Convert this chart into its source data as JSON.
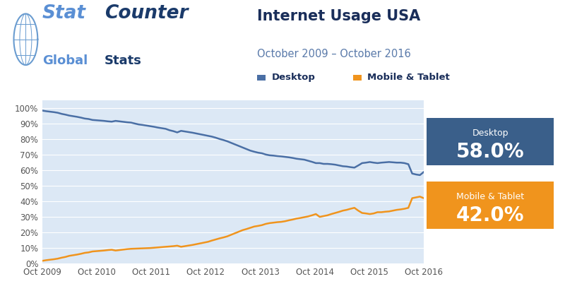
{
  "title": "Internet Usage USA",
  "subtitle": "October 2009 – October 2016",
  "legend_desktop": "Desktop",
  "legend_mobile": "Mobile & Tablet",
  "desktop_color": "#4a6fa5",
  "mobile_color": "#f0941d",
  "desktop_box_color": "#3a5f8a",
  "mobile_box_color": "#f0941d",
  "title_color": "#1a2e5a",
  "subtitle_color": "#5a7aaa",
  "background_color": "#ffffff",
  "plot_bg_color": "#dce8f5",
  "grid_color": "#ffffff",
  "ylim": [
    0,
    1.05
  ],
  "yticks": [
    0,
    0.1,
    0.2,
    0.3,
    0.4,
    0.5,
    0.6,
    0.7,
    0.8,
    0.9,
    1.0
  ],
  "ytick_labels": [
    "0%",
    "10%",
    "20%",
    "30%",
    "40%",
    "50%",
    "60%",
    "70%",
    "80%",
    "90%",
    "100%"
  ],
  "xtick_labels": [
    "Oct 2009",
    "Oct 2010",
    "Oct 2011",
    "Oct 2012",
    "Oct 2013",
    "Oct 2014",
    "Oct 2015",
    "Oct 2016"
  ],
  "desktop_data": [
    0.982,
    0.978,
    0.975,
    0.972,
    0.968,
    0.961,
    0.956,
    0.95,
    0.946,
    0.942,
    0.937,
    0.931,
    0.928,
    0.922,
    0.92,
    0.918,
    0.916,
    0.913,
    0.911,
    0.916,
    0.913,
    0.91,
    0.907,
    0.905,
    0.899,
    0.893,
    0.89,
    0.886,
    0.882,
    0.878,
    0.873,
    0.869,
    0.865,
    0.856,
    0.85,
    0.842,
    0.852,
    0.848,
    0.844,
    0.84,
    0.835,
    0.83,
    0.825,
    0.82,
    0.815,
    0.808,
    0.8,
    0.793,
    0.785,
    0.775,
    0.765,
    0.755,
    0.745,
    0.735,
    0.725,
    0.718,
    0.712,
    0.708,
    0.7,
    0.695,
    0.693,
    0.69,
    0.688,
    0.685,
    0.682,
    0.678,
    0.673,
    0.67,
    0.667,
    0.66,
    0.653,
    0.645,
    0.645,
    0.64,
    0.64,
    0.638,
    0.635,
    0.63,
    0.625,
    0.623,
    0.619,
    0.616,
    0.63,
    0.645,
    0.648,
    0.652,
    0.648,
    0.645,
    0.648,
    0.65,
    0.652,
    0.65,
    0.648,
    0.648,
    0.645,
    0.638,
    0.578,
    0.572,
    0.568,
    0.588
  ],
  "mobile_data": [
    0.018,
    0.022,
    0.025,
    0.028,
    0.032,
    0.038,
    0.043,
    0.05,
    0.054,
    0.058,
    0.063,
    0.069,
    0.072,
    0.078,
    0.08,
    0.082,
    0.084,
    0.087,
    0.089,
    0.084,
    0.087,
    0.09,
    0.093,
    0.095,
    0.096,
    0.097,
    0.098,
    0.099,
    0.1,
    0.102,
    0.104,
    0.106,
    0.108,
    0.11,
    0.112,
    0.115,
    0.108,
    0.112,
    0.116,
    0.12,
    0.125,
    0.13,
    0.135,
    0.14,
    0.148,
    0.155,
    0.162,
    0.168,
    0.175,
    0.185,
    0.195,
    0.205,
    0.215,
    0.222,
    0.23,
    0.238,
    0.242,
    0.247,
    0.255,
    0.26,
    0.263,
    0.266,
    0.268,
    0.272,
    0.278,
    0.283,
    0.289,
    0.293,
    0.298,
    0.303,
    0.31,
    0.318,
    0.3,
    0.305,
    0.31,
    0.318,
    0.325,
    0.332,
    0.34,
    0.345,
    0.352,
    0.358,
    0.34,
    0.325,
    0.322,
    0.318,
    0.322,
    0.33,
    0.33,
    0.333,
    0.335,
    0.34,
    0.345,
    0.348,
    0.352,
    0.358,
    0.42,
    0.425,
    0.43,
    0.42
  ]
}
